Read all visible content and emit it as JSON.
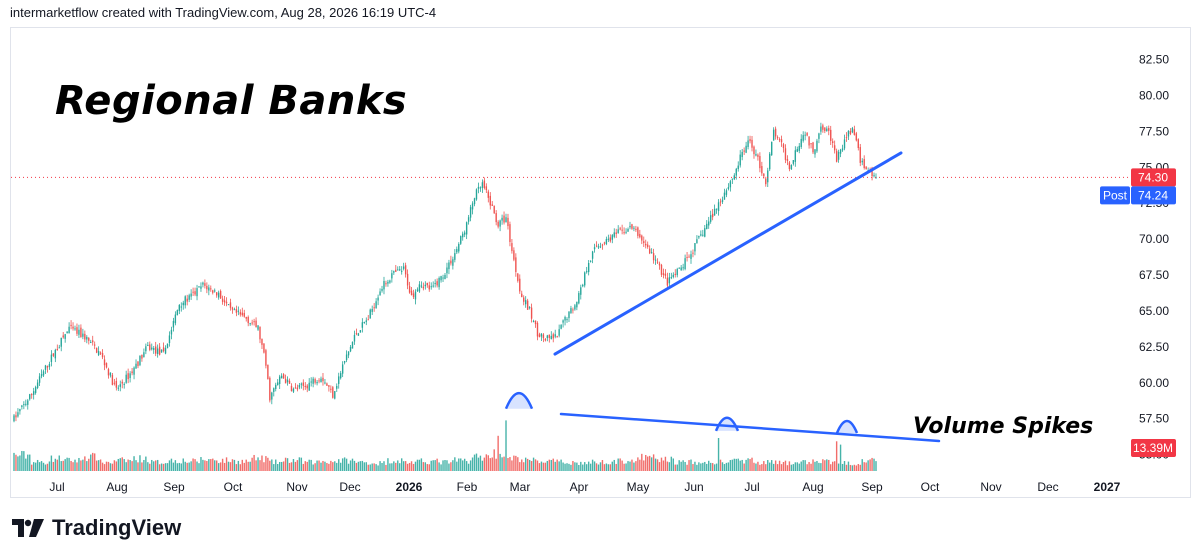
{
  "header": {
    "credit": "intermarketflow created with TradingView.com, Aug 28, 2026 16:19 UTC-4"
  },
  "brand": {
    "name": "TradingView",
    "icon": "tradingview-logo-icon"
  },
  "colors": {
    "up": "#26a69a",
    "down": "#ef5350",
    "trendline": "#2962ff",
    "price_badge": "#f23645",
    "post_badge": "#2962ff"
  },
  "chart_data": {
    "type": "candlestick",
    "title": "Regional Banks",
    "annotations": {
      "volume": "Volume Spikes"
    },
    "y_axis": {
      "ticks": [
        "82.50",
        "80.00",
        "77.50",
        "75.00",
        "72.50",
        "70.00",
        "67.50",
        "65.00",
        "62.50",
        "60.00",
        "57.50",
        "55.00"
      ],
      "range": [
        54.0,
        84.0
      ]
    },
    "x_axis": {
      "labels": [
        "Jul",
        "Aug",
        "Sep",
        "Oct",
        "Nov",
        "Dec",
        "2026",
        "Feb",
        "Mar",
        "Apr",
        "May",
        "Jun",
        "Jul",
        "Aug",
        "Sep",
        "Oct",
        "Nov",
        "Dec",
        "2027"
      ]
    },
    "last_price": {
      "value": "74.30",
      "post_label": "Post",
      "post_value": "74.24"
    },
    "volume_last": "13.39M",
    "price_path": [
      [
        0,
        57.5
      ],
      [
        8,
        59.0
      ],
      [
        20,
        62.0
      ],
      [
        28,
        63.8
      ],
      [
        36,
        63.2
      ],
      [
        44,
        62.0
      ],
      [
        52,
        59.5
      ],
      [
        60,
        60.8
      ],
      [
        68,
        62.5
      ],
      [
        76,
        62.0
      ],
      [
        84,
        65.5
      ],
      [
        90,
        66.0
      ],
      [
        96,
        66.8
      ],
      [
        104,
        66.2
      ],
      [
        110,
        65.0
      ],
      [
        118,
        64.5
      ],
      [
        124,
        63.8
      ],
      [
        128,
        61.2
      ],
      [
        130,
        59.0
      ],
      [
        136,
        60.5
      ],
      [
        142,
        59.5
      ],
      [
        148,
        59.8
      ],
      [
        156,
        60.5
      ],
      [
        162,
        59.2
      ],
      [
        168,
        61.5
      ],
      [
        174,
        63.5
      ],
      [
        180,
        64.5
      ],
      [
        186,
        66.5
      ],
      [
        192,
        67.5
      ],
      [
        198,
        67.9
      ],
      [
        202,
        66.0
      ],
      [
        206,
        67.0
      ],
      [
        212,
        66.5
      ],
      [
        218,
        67.5
      ],
      [
        224,
        69.0
      ],
      [
        230,
        71.0
      ],
      [
        234,
        73.0
      ],
      [
        238,
        73.8
      ],
      [
        242,
        72.5
      ],
      [
        246,
        71.0
      ],
      [
        250,
        71.5
      ],
      [
        254,
        68.5
      ],
      [
        258,
        66.0
      ],
      [
        262,
        65.0
      ],
      [
        266,
        63.5
      ],
      [
        270,
        63.0
      ],
      [
        276,
        63.2
      ],
      [
        280,
        64.5
      ],
      [
        284,
        65.2
      ],
      [
        288,
        66.5
      ],
      [
        292,
        68.5
      ],
      [
        296,
        69.5
      ],
      [
        302,
        70.0
      ],
      [
        308,
        70.5
      ],
      [
        314,
        70.8
      ],
      [
        320,
        69.8
      ],
      [
        326,
        68.5
      ],
      [
        332,
        67.0
      ],
      [
        338,
        67.8
      ],
      [
        344,
        69.0
      ],
      [
        350,
        70.5
      ],
      [
        356,
        72.0
      ],
      [
        362,
        73.5
      ],
      [
        366,
        74.5
      ],
      [
        370,
        76.0
      ],
      [
        374,
        76.8
      ],
      [
        378,
        75.5
      ],
      [
        382,
        74.0
      ],
      [
        386,
        77.5
      ],
      [
        390,
        76.5
      ],
      [
        394,
        75.0
      ],
      [
        398,
        76.5
      ],
      [
        402,
        77.5
      ],
      [
        406,
        76.0
      ],
      [
        410,
        78.0
      ],
      [
        414,
        77.5
      ],
      [
        418,
        75.5
      ],
      [
        422,
        76.8
      ],
      [
        426,
        77.8
      ],
      [
        430,
        75.5
      ],
      [
        434,
        74.8
      ],
      [
        438,
        74.3
      ]
    ],
    "volume_profile": [
      0.9,
      0.5,
      0.7,
      0.6,
      0.8,
      0.5,
      0.6,
      0.7,
      0.5,
      0.6,
      0.55,
      0.65,
      0.6,
      0.55,
      0.7,
      0.5,
      0.6,
      0.5,
      0.55,
      0.6,
      0.5,
      0.45,
      0.6,
      0.5,
      0.55,
      0.5,
      0.6,
      0.8,
      1.0,
      0.7,
      0.6,
      0.55,
      0.5,
      0.45,
      0.5,
      0.55,
      0.6,
      0.75,
      0.65,
      0.5,
      0.45,
      0.5,
      0.55,
      0.6,
      0.5,
      0.45,
      0.5,
      0.55,
      0.5,
      0.45,
      0.7
    ]
  }
}
